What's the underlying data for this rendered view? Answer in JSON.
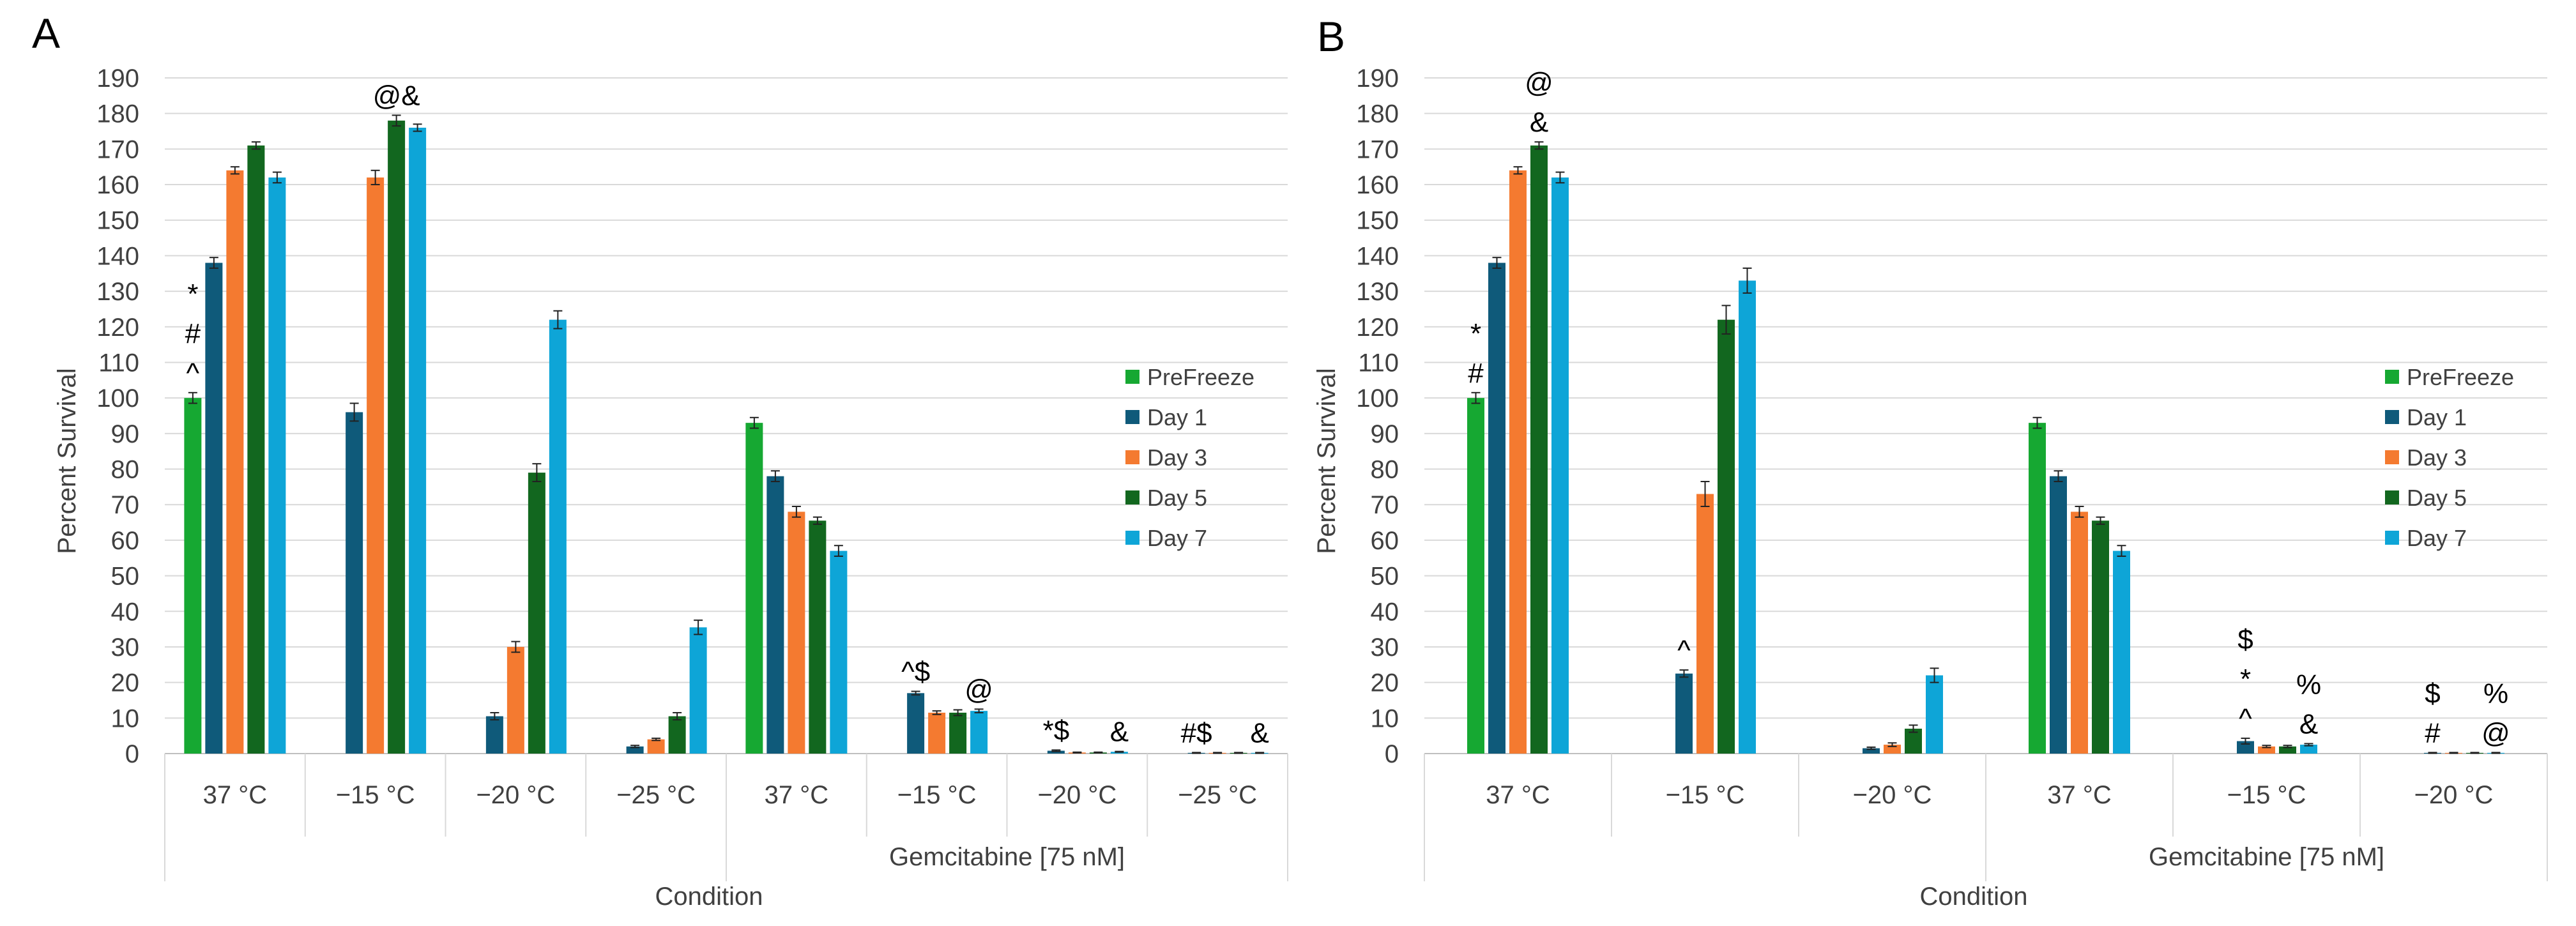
{
  "colors": {
    "PreFreeze": "#16a832",
    "Day 1": "#0f5a7a",
    "Day 3": "#f47a30",
    "Day 5": "#12671f",
    "Day 7": "#0ea5d7",
    "grid": "#d9d9d9",
    "text": "#404040"
  },
  "chart_data": [
    {
      "panel": "A",
      "type": "bar",
      "xlabel": "Condition",
      "ylabel": "Percent Survival",
      "ylim": [
        0,
        190
      ],
      "yticks": [
        0,
        10,
        20,
        30,
        40,
        50,
        60,
        70,
        80,
        90,
        100,
        110,
        120,
        130,
        140,
        150,
        160,
        170,
        180,
        190
      ],
      "legend_position": "right",
      "categories": [
        "37 °C",
        "−15 °C",
        "−20 °C",
        "−25 °C",
        "37 °C",
        "−15 °C",
        "−20 °C",
        "−25 °C"
      ],
      "groups": [
        {
          "label": "",
          "categories": [
            0,
            1,
            2,
            3
          ]
        },
        {
          "label": "Gemcitabine [75 nM]",
          "categories": [
            4,
            5,
            6,
            7
          ]
        }
      ],
      "series": [
        {
          "name": "PreFreeze",
          "values": [
            100,
            null,
            null,
            null,
            93,
            null,
            null,
            null
          ],
          "errors": [
            1.5,
            null,
            null,
            null,
            1.5,
            null,
            null,
            null
          ]
        },
        {
          "name": "Day 1",
          "values": [
            138,
            96,
            10.5,
            2,
            78,
            17,
            0.8,
            0.2
          ],
          "errors": [
            1.5,
            2.5,
            1,
            0.3,
            1.5,
            0.5,
            0.2,
            0.1
          ]
        },
        {
          "name": "Day 3",
          "values": [
            164,
            162,
            30,
            4,
            68,
            11.5,
            0.3,
            0.2
          ],
          "errors": [
            1,
            2,
            1.5,
            0.3,
            1.5,
            0.5,
            0.1,
            0.1
          ]
        },
        {
          "name": "Day 5",
          "values": [
            171,
            178,
            79,
            10.5,
            65.5,
            11.5,
            0.3,
            0.2
          ],
          "errors": [
            1,
            1.5,
            2.5,
            1,
            1,
            0.8,
            0.1,
            0.1
          ]
        },
        {
          "name": "Day 7",
          "values": [
            162,
            176,
            122,
            35.5,
            57,
            12,
            0.5,
            0.2
          ],
          "errors": [
            1.5,
            1,
            2.5,
            2,
            1.5,
            0.5,
            0.1,
            0.1
          ]
        }
      ],
      "annotations": [
        {
          "category": 0,
          "series": "PreFreeze",
          "lines": [
            "*",
            "#",
            "^"
          ]
        },
        {
          "category": 1,
          "series": "Day 5",
          "lines": [
            "@&"
          ]
        },
        {
          "category": 5,
          "series": "Day 1",
          "lines": [
            "^$"
          ]
        },
        {
          "category": 5,
          "series": "Day 7",
          "lines": [
            "@"
          ]
        },
        {
          "category": 6,
          "series": "Day 1",
          "lines": [
            "*$"
          ]
        },
        {
          "category": 6,
          "series": "Day 7",
          "lines": [
            "&"
          ]
        },
        {
          "category": 7,
          "series": "Day 1",
          "lines": [
            "#$"
          ]
        },
        {
          "category": 7,
          "series": "Day 7",
          "lines": [
            "&"
          ]
        }
      ]
    },
    {
      "panel": "B",
      "type": "bar",
      "xlabel": "Condition",
      "ylabel": "Percent Survival",
      "ylim": [
        0,
        190
      ],
      "yticks": [
        0,
        10,
        20,
        30,
        40,
        50,
        60,
        70,
        80,
        90,
        100,
        110,
        120,
        130,
        140,
        150,
        160,
        170,
        180,
        190
      ],
      "legend_position": "right",
      "categories": [
        "37 °C",
        "−15 °C",
        "−20 °C",
        "37 °C",
        "−15 °C",
        "−20 °C"
      ],
      "groups": [
        {
          "label": "",
          "categories": [
            0,
            1,
            2
          ]
        },
        {
          "label": "Gemcitabine [75 nM]",
          "categories": [
            3,
            4,
            5
          ]
        }
      ],
      "series": [
        {
          "name": "PreFreeze",
          "values": [
            100,
            null,
            null,
            93,
            null,
            null
          ],
          "errors": [
            1.5,
            null,
            null,
            1.5,
            null,
            null
          ]
        },
        {
          "name": "Day 1",
          "values": [
            138,
            22.5,
            1.5,
            78,
            3.5,
            0.2
          ],
          "errors": [
            1.5,
            1,
            0.3,
            1.5,
            0.8,
            0.1
          ]
        },
        {
          "name": "Day 3",
          "values": [
            164,
            73,
            2.5,
            68,
            2,
            0.2
          ],
          "errors": [
            1,
            3.5,
            0.5,
            1.5,
            0.3,
            0.1
          ]
        },
        {
          "name": "Day 5",
          "values": [
            171,
            122,
            7,
            65.5,
            2,
            0.2
          ],
          "errors": [
            1,
            4,
            1,
            1,
            0.3,
            0.1
          ]
        },
        {
          "name": "Day 7",
          "values": [
            162,
            133,
            22,
            57,
            2.5,
            0.2
          ],
          "errors": [
            1.5,
            3.5,
            2,
            1.5,
            0.3,
            0.1
          ]
        }
      ],
      "annotations": [
        {
          "category": 0,
          "series": "PreFreeze",
          "lines": [
            "*",
            "#"
          ]
        },
        {
          "category": 0,
          "series": "Day 5",
          "lines": [
            "@",
            "&"
          ]
        },
        {
          "category": 1,
          "series": "Day 1",
          "lines": [
            "^"
          ]
        },
        {
          "category": 4,
          "series": "Day 1",
          "lines": [
            "$",
            "*",
            "^"
          ]
        },
        {
          "category": 4,
          "series": "Day 7",
          "lines": [
            "%",
            "&"
          ]
        },
        {
          "category": 5,
          "series": "Day 1",
          "lines": [
            "$",
            "#"
          ]
        },
        {
          "category": 5,
          "series": "Day 7",
          "lines": [
            "%",
            "@"
          ]
        }
      ]
    }
  ]
}
